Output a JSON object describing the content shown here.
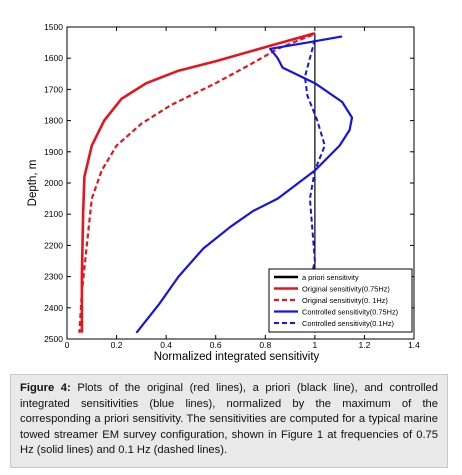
{
  "chart_data": {
    "type": "line",
    "xlabel": "Normalized integrated sensitivity",
    "ylabel": "Depth, m",
    "xlim": [
      0,
      1.4
    ],
    "ylim": [
      1500,
      2500
    ],
    "y_reversed": true,
    "xticks": [
      0,
      0.2,
      0.4,
      0.6,
      0.8,
      1,
      1.2,
      1.4
    ],
    "xtick_labels": [
      "0",
      "0.2",
      "0.4",
      "0.6",
      "0.8",
      "1",
      "1.2",
      "1.4"
    ],
    "yticks": [
      1500,
      1600,
      1700,
      1800,
      1900,
      2000,
      2100,
      2200,
      2300,
      2400,
      2500
    ],
    "ytick_labels": [
      "1500",
      "1600",
      "1700",
      "1800",
      "1900",
      "2000",
      "2100",
      "2200",
      "2300",
      "2400",
      "2500"
    ],
    "grid": false,
    "legend_position": "bottom-right",
    "series": [
      {
        "name": "a priori sensitivity",
        "color": "#000000",
        "style": "solid",
        "width": 1.2,
        "legend_width": 2.6,
        "points": [
          [
            1.0,
            1520
          ],
          [
            1.0,
            2480
          ]
        ]
      },
      {
        "name": "Original sensitivity(0.75Hz)",
        "color": "#e8141c",
        "style": "solid",
        "width": 2.6,
        "points": [
          [
            1.0,
            1520
          ],
          [
            0.82,
            1560
          ],
          [
            0.6,
            1610
          ],
          [
            0.45,
            1640
          ],
          [
            0.32,
            1680
          ],
          [
            0.22,
            1730
          ],
          [
            0.15,
            1800
          ],
          [
            0.1,
            1880
          ],
          [
            0.07,
            1980
          ],
          [
            0.065,
            2100
          ],
          [
            0.06,
            2300
          ],
          [
            0.06,
            2480
          ]
        ]
      },
      {
        "name": "Original sensitivity(0. 1Hz)",
        "color": "#e8141c",
        "style": "dashed",
        "width": 2.2,
        "points": [
          [
            0.99,
            1525
          ],
          [
            0.85,
            1570
          ],
          [
            0.74,
            1620
          ],
          [
            0.6,
            1680
          ],
          [
            0.42,
            1750
          ],
          [
            0.3,
            1810
          ],
          [
            0.2,
            1880
          ],
          [
            0.14,
            1960
          ],
          [
            0.1,
            2050
          ],
          [
            0.08,
            2200
          ],
          [
            0.06,
            2350
          ],
          [
            0.05,
            2480
          ]
        ]
      },
      {
        "name": "Controlled sensitivity(0.75Hz)",
        "color": "#1414e6",
        "style": "solid",
        "width": 2.2,
        "points": [
          [
            1.11,
            1530
          ],
          [
            0.97,
            1550
          ],
          [
            0.82,
            1570
          ],
          [
            0.85,
            1600
          ],
          [
            0.87,
            1630
          ],
          [
            1.0,
            1680
          ],
          [
            1.11,
            1740
          ],
          [
            1.15,
            1790
          ],
          [
            1.14,
            1830
          ],
          [
            1.1,
            1880
          ],
          [
            1.0,
            1960
          ],
          [
            0.85,
            2050
          ],
          [
            0.75,
            2090
          ],
          [
            0.66,
            2140
          ],
          [
            0.55,
            2210
          ],
          [
            0.45,
            2300
          ],
          [
            0.37,
            2390
          ],
          [
            0.28,
            2480
          ]
        ]
      },
      {
        "name": "Controlled sensitivity(0.1Hz)",
        "color": "#1414e6",
        "style": "dashed",
        "width": 2.0,
        "points": [
          [
            1.0,
            1540
          ],
          [
            0.98,
            1600
          ],
          [
            0.96,
            1660
          ],
          [
            0.97,
            1720
          ],
          [
            1.01,
            1800
          ],
          [
            1.04,
            1880
          ],
          [
            1.0,
            1960
          ],
          [
            0.98,
            2050
          ],
          [
            0.99,
            2150
          ],
          [
            1.0,
            2250
          ],
          [
            0.98,
            2320
          ],
          [
            0.95,
            2390
          ],
          [
            0.9,
            2430
          ],
          [
            0.85,
            2470
          ]
        ]
      }
    ]
  },
  "caption": {
    "label": "Figure 4:",
    "text": " Plots of the original (red lines), a priori (black line), and controlled integrated sensitivities (blue lines), normalized by the maximum of the corresponding a priori sensitivity. The sensitivities are computed for a typical marine towed streamer EM survey configuration, shown in Figure 1 at frequencies of 0.75 Hz (solid lines) and 0.1 Hz (dashed lines)."
  }
}
